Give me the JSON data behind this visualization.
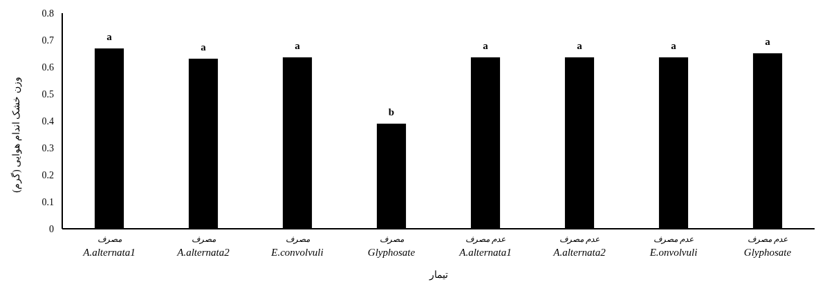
{
  "chart_data": {
    "type": "bar",
    "xlabel": "تیمار",
    "ylabel": "وزن خشک اندام هوایی (گرم)",
    "categories": [
      "مصرف\nA.alternata1",
      "مصرف\nA.alternata2",
      "مصرف\nE.convolvuli",
      "مصرف\nGlyphosate",
      "عدم مصرف\nA.alternata1",
      "عدم مصرف\nA.alternata2",
      "عدم مصرف\nE.onvolvuli",
      "عدم مصرف\nGlyphosate"
    ],
    "values": [
      0.669,
      0.631,
      0.636,
      0.39,
      0.636,
      0.636,
      0.636,
      0.651
    ],
    "value_labels": [
      "a",
      "a",
      "a",
      "b",
      "a",
      "a",
      "a",
      "a"
    ],
    "color": "#000000",
    "ylim": [
      0,
      0.8
    ],
    "yticks": [
      0,
      0.1,
      0.2,
      0.3,
      0.4,
      0.5,
      0.6,
      0.7,
      0.8
    ],
    "grid": false
  }
}
